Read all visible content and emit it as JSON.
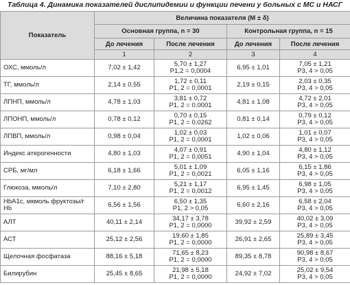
{
  "title": "Таблица 4. Динамика показателей дислипидемии и функции печени у больных с МС и НАСГ",
  "header": {
    "indicator": "Показатель",
    "value": "Величина показателя (M ± δ)",
    "groups": [
      "Основная группа, n = 30",
      "Контрольная группа, n = 15"
    ],
    "subheaders": [
      "До лечения",
      "После лечения",
      "До лечения",
      "После лечения"
    ],
    "numbers": [
      "1",
      "2",
      "3",
      "4"
    ]
  },
  "table": {
    "rows": [
      [
        "ОХС, ммоль/л",
        "7,02 ± 1,42",
        [
          "5,70 ± 1,27",
          "Р1,2 = 0,0004"
        ],
        "6,95 ± 1,01",
        [
          "7,05 ± 1,21",
          "Р3, 4 > 0,05"
        ]
      ],
      [
        "ТГ, ммоль/л",
        "2,14 ± 0,55",
        [
          "1,72 ± 0,11",
          "Р1, 2 = 0,0001"
        ],
        "2,19 ± 0,15",
        [
          "2,03 ± 0,35",
          "Р3, 4 > 0,05"
        ]
      ],
      [
        "ЛПНП, ммоль/л",
        "4,78 ± 1,03",
        [
          "3,81 ± 0,72",
          "Р1, 2 = 0,0001"
        ],
        "4,81 ± 1,08",
        [
          "4,72 ± 2,01",
          "Р3, 4 > 0,05"
        ]
      ],
      [
        "ЛПОНП, ммоль/л",
        "0,78 ± 0,12",
        [
          "0,70 ± 0,15",
          "Р1, 2 = 0,0262"
        ],
        "0,81 ± 0,14",
        [
          "0,79 ± 0,12",
          "Р3, 4 > 0,05"
        ]
      ],
      [
        "ЛПВП, ммоль/л",
        "0,98 ± 0,04",
        [
          "1,02 ± 0,03",
          "Р1, 2 = 0,0001"
        ],
        "1,02 ± 0,06",
        [
          "1,01 ± 0,07",
          "Р3, 4 > 0,05"
        ]
      ],
      [
        "Индекс атерогенности",
        "4,80 ± 1,03",
        [
          "4,07 ± 0,91",
          "Р1, 2 = 0,0051"
        ],
        "4,90 ± 1,04",
        [
          "4,80 ± 1,12",
          "Р3, 4 > 0,05"
        ]
      ],
      [
        "СРБ, мг/мл",
        "6,18 ± 1,66",
        [
          "5,01 ± 1,09",
          "Р1, 2 = 0,0021"
        ],
        "6,05 ± 1,16",
        [
          "6,15 ± 1,86",
          "Р3, 4 > 0,05"
        ]
      ],
      [
        "Глюкоза, ммоль/л",
        "7,10 ± 2,80",
        [
          "5,21 ± 1,17",
          "Р1, 2 = 0,0012"
        ],
        "6,95 ± 1,45",
        [
          "6,98 ± 1,05",
          "Р3, 4 > 0,05"
        ]
      ],
      [
        "HbA1c, мкмоль фруктозы/г Hb",
        "6,56 ± 1,56",
        [
          "6,50 ± 1,35",
          "Р1, 2 > 0,05"
        ],
        "6,60 ± 2,16",
        [
          "6,58 ± 2,04",
          "Р3, 4 > 0,05"
        ]
      ],
      [
        "АЛТ",
        "40,11 ± 2,14",
        [
          "34,17 ± 3,78",
          "Р1, 2 = 0,0000"
        ],
        "39,92 ± 2,59",
        [
          "40,02 ± 3,09",
          "Р3, 4 > 0,05"
        ]
      ],
      [
        "АСТ",
        "25,12 ± 2,56",
        [
          "19,60 ± 1,85",
          "Р1, 2 = 0,0000"
        ],
        "26,91 ± 2,65",
        [
          "25,89 ± 3,45",
          "Р3, 4 > 0,05"
        ]
      ],
      [
        "Щелочная фосфатаза",
        "88,16 ± 5,18",
        [
          "71,65 ± 8,23",
          "Р1, 2 = 0,0000"
        ],
        "89,35 ± 8,78",
        [
          "90,98 ± 8,67",
          "Р3, 4 > 0,05"
        ]
      ],
      [
        "Билирубин",
        "25,45 ± 8,65",
        [
          "21,98 ± 5,18",
          "Р1, 2 = 0,0000"
        ],
        "24,92 ± 7,02",
        [
          "25,02 ± 9,54",
          "Р3, 4 > 0,05"
        ]
      ]
    ]
  }
}
